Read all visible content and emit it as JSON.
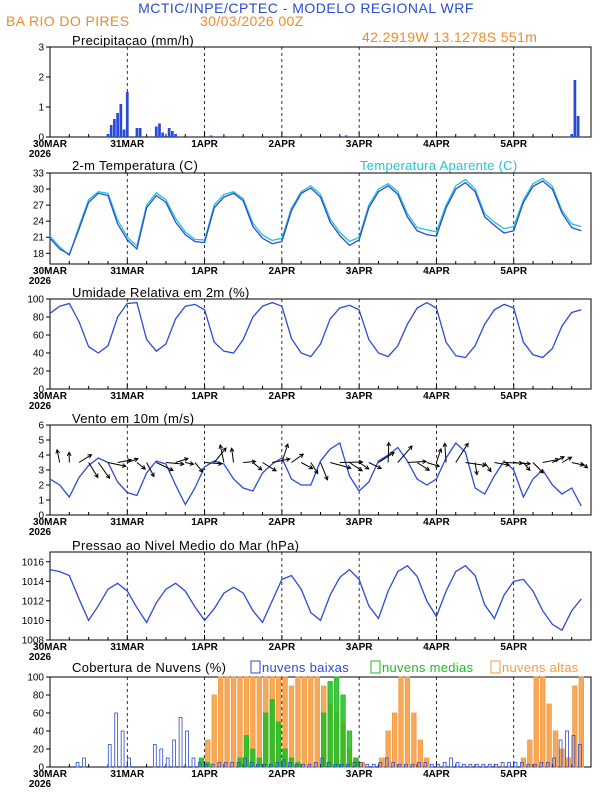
{
  "header": {
    "title": "MCTIC/INPE/CPTEC - MODELO REGIONAL WRF",
    "location": "BA RIO DO PIRES",
    "run": "30/03/2026 00Z",
    "coords": "42.2919W 13.1278S 551m"
  },
  "x_axis": {
    "first_label": "30MAR",
    "year": "2026",
    "labels": [
      "31MAR",
      "1APR",
      "2APR",
      "3APR",
      "4APR",
      "5APR"
    ]
  },
  "colors": {
    "blue": "#2a4bd8",
    "cyan": "#22c4d4",
    "orange": "#f59a3c",
    "green": "#22bb22",
    "title_blue": "#2a4bd8"
  },
  "chart_data": [
    {
      "id": "precip",
      "type": "bar",
      "title": "Precipitacao (mm/h)",
      "ylim": [
        0,
        3
      ],
      "yticks": [
        "0",
        "1",
        "2",
        "3"
      ],
      "x_hours": [
        18,
        19,
        20,
        21,
        22,
        23,
        24,
        27,
        28,
        33,
        34,
        35,
        37,
        38,
        39,
        50,
        92,
        162,
        163,
        164
      ],
      "values": [
        0.1,
        0.4,
        0.6,
        0.8,
        1.1,
        0.25,
        1.5,
        0.3,
        0.3,
        0.35,
        0.45,
        0.15,
        0.3,
        0.2,
        0.1,
        0.05,
        0.05,
        0.1,
        1.9,
        0.7
      ]
    },
    {
      "id": "temp",
      "type": "line",
      "title": "2-m Temperatura (C)",
      "legend": "Temperatura Aparente (C)",
      "ylim": [
        16,
        33
      ],
      "yticks": [
        "18",
        "21",
        "24",
        "27",
        "30",
        "33"
      ],
      "series": [
        {
          "name": "2-m Temperatura (C)",
          "x": [
            0,
            3,
            6,
            9,
            12,
            15,
            18,
            21,
            24,
            27,
            30,
            33,
            36,
            39,
            42,
            45,
            48,
            51,
            54,
            57,
            60,
            63,
            66,
            69,
            72,
            75,
            78,
            81,
            84,
            87,
            90,
            93,
            96,
            99,
            102,
            105,
            108,
            111,
            114,
            117,
            120,
            123,
            126,
            129,
            132,
            135,
            138,
            141,
            144,
            147,
            150,
            153,
            156,
            159,
            162,
            165
          ],
          "values": [
            20.8,
            18.8,
            17.8,
            22.5,
            27.5,
            29.2,
            28.8,
            23.5,
            20.5,
            18.8,
            26.5,
            28.8,
            27.5,
            23.8,
            21.5,
            20.2,
            20.0,
            26.5,
            28.5,
            29.2,
            27.8,
            23.0,
            20.8,
            19.8,
            20.2,
            26.0,
            29.2,
            30.2,
            28.5,
            23.8,
            21.3,
            19.5,
            20.5,
            26.5,
            29.5,
            30.6,
            29.0,
            24.8,
            22.2,
            21.5,
            21.2,
            26.5,
            30.0,
            31.2,
            29.5,
            24.8,
            23.2,
            21.8,
            22.2,
            27.5,
            30.5,
            31.5,
            30.0,
            25.5,
            22.8,
            22.2
          ]
        },
        {
          "name": "Temperatura Aparente (C)",
          "x": [
            0,
            3,
            6,
            9,
            12,
            15,
            18,
            21,
            24,
            27,
            30,
            33,
            36,
            39,
            42,
            45,
            48,
            51,
            54,
            57,
            60,
            63,
            66,
            69,
            72,
            75,
            78,
            81,
            84,
            87,
            90,
            93,
            96,
            99,
            102,
            105,
            108,
            111,
            114,
            117,
            120,
            123,
            126,
            129,
            132,
            135,
            138,
            141,
            144,
            147,
            150,
            153,
            156,
            159,
            162,
            165
          ],
          "values": [
            21.2,
            19.2,
            17.6,
            23.0,
            28.0,
            29.5,
            29.2,
            24.2,
            21.0,
            19.4,
            27.0,
            29.3,
            28.0,
            24.5,
            22.0,
            20.6,
            20.5,
            27.0,
            29.0,
            29.5,
            28.2,
            23.6,
            21.4,
            20.4,
            20.8,
            26.5,
            29.5,
            30.6,
            29.0,
            24.4,
            21.9,
            20.2,
            21.0,
            27.0,
            30.0,
            31.0,
            29.5,
            25.4,
            22.8,
            22.4,
            22.0,
            27.0,
            30.6,
            31.8,
            30.0,
            25.4,
            23.8,
            22.6,
            23.0,
            28.0,
            31.0,
            32.0,
            30.5,
            26.0,
            23.5,
            23.0
          ]
        }
      ]
    },
    {
      "id": "rh",
      "type": "line",
      "title": "Umidade Relativa em 2m (%)",
      "ylim": [
        0,
        100
      ],
      "yticks": [
        "0",
        "20",
        "40",
        "60",
        "80",
        "100"
      ],
      "series": [
        {
          "name": "UR",
          "x": [
            0,
            3,
            6,
            9,
            12,
            15,
            18,
            21,
            24,
            27,
            30,
            33,
            36,
            39,
            42,
            45,
            48,
            51,
            54,
            57,
            60,
            63,
            66,
            69,
            72,
            75,
            78,
            81,
            84,
            87,
            90,
            93,
            96,
            99,
            102,
            105,
            108,
            111,
            114,
            117,
            120,
            123,
            126,
            129,
            132,
            135,
            138,
            141,
            144,
            147,
            150,
            153,
            156,
            159,
            162,
            165
          ],
          "values": [
            84,
            92,
            95,
            75,
            47,
            40,
            48,
            80,
            95,
            96,
            55,
            42,
            50,
            78,
            92,
            94,
            88,
            52,
            42,
            40,
            55,
            80,
            92,
            96,
            92,
            56,
            40,
            36,
            50,
            78,
            90,
            93,
            88,
            55,
            40,
            36,
            48,
            72,
            90,
            96,
            90,
            52,
            37,
            35,
            48,
            72,
            88,
            94,
            90,
            52,
            38,
            35,
            45,
            70,
            85,
            88
          ]
        }
      ]
    },
    {
      "id": "wind",
      "type": "line",
      "title": "Vento em 10m (m/s)",
      "ylim": [
        0,
        6
      ],
      "yticks": [
        "0",
        "1",
        "2",
        "3",
        "4",
        "5",
        "6"
      ],
      "series": [
        {
          "name": "Vento 10m",
          "x": [
            0,
            3,
            6,
            9,
            12,
            15,
            18,
            21,
            24,
            27,
            30,
            33,
            36,
            39,
            42,
            45,
            48,
            51,
            54,
            57,
            60,
            63,
            66,
            69,
            72,
            75,
            78,
            81,
            84,
            87,
            90,
            93,
            96,
            99,
            102,
            105,
            108,
            111,
            114,
            117,
            120,
            123,
            126,
            129,
            132,
            135,
            138,
            141,
            144,
            147,
            150,
            153,
            156,
            159,
            162,
            165
          ],
          "values": [
            2.4,
            2.0,
            1.2,
            2.5,
            3.3,
            3.8,
            3.5,
            2.2,
            1.5,
            1.3,
            2.8,
            3.6,
            3.4,
            2.0,
            0.7,
            1.8,
            3.2,
            3.6,
            3.4,
            2.4,
            1.8,
            1.6,
            2.8,
            3.4,
            3.8,
            2.4,
            2.0,
            2.0,
            3.6,
            4.4,
            4.8,
            2.6,
            1.6,
            2.2,
            3.6,
            4.0,
            4.5,
            3.6,
            2.4,
            2.0,
            2.4,
            3.8,
            4.8,
            4.2,
            1.8,
            1.4,
            2.6,
            3.6,
            3.0,
            1.2,
            2.4,
            3.0,
            2.0,
            1.4,
            1.8,
            0.6
          ]
        }
      ],
      "arrows": "wind direction barbs drawn along y = 3.5"
    },
    {
      "id": "slp",
      "type": "line",
      "title": "Pressao ao Nivel Medio do Mar (hPa)",
      "ylim": [
        1008,
        1017
      ],
      "yticks": [
        "1008",
        "1010",
        "1012",
        "1014",
        "1016"
      ],
      "series": [
        {
          "name": "PNMM",
          "x": [
            0,
            3,
            6,
            9,
            12,
            15,
            18,
            21,
            24,
            27,
            30,
            33,
            36,
            39,
            42,
            45,
            48,
            51,
            54,
            57,
            60,
            63,
            66,
            69,
            72,
            75,
            78,
            81,
            84,
            87,
            90,
            93,
            96,
            99,
            102,
            105,
            108,
            111,
            114,
            117,
            120,
            123,
            126,
            129,
            132,
            135,
            138,
            141,
            144,
            147,
            150,
            153,
            156,
            159,
            162,
            165
          ],
          "values": [
            1015.2,
            1015.0,
            1014.6,
            1012.2,
            1010.0,
            1011.5,
            1013.2,
            1013.8,
            1013.0,
            1011.3,
            1009.8,
            1011.8,
            1013.2,
            1013.8,
            1013.0,
            1011.4,
            1010.0,
            1011.2,
            1012.8,
            1013.4,
            1012.8,
            1011.0,
            1009.8,
            1012.0,
            1014.2,
            1014.6,
            1013.2,
            1010.8,
            1010.0,
            1012.6,
            1014.4,
            1015.2,
            1014.2,
            1011.5,
            1010.2,
            1013.0,
            1015.0,
            1015.6,
            1014.5,
            1012.0,
            1010.4,
            1013.0,
            1015.0,
            1015.6,
            1014.6,
            1011.6,
            1010.2,
            1012.6,
            1014.0,
            1014.2,
            1013.0,
            1011.0,
            1009.6,
            1009.0,
            1011.0,
            1012.2
          ]
        }
      ]
    },
    {
      "id": "clouds",
      "type": "bar",
      "title": "Cobertura de Nuvens (%)",
      "ylim": [
        0,
        100
      ],
      "yticks": [
        "0",
        "20",
        "40",
        "60",
        "80",
        "100"
      ],
      "legend": [
        "nuvens baixas",
        "nuvens medias",
        "nuvens altas"
      ],
      "x_hours": [
        0,
        2,
        4,
        6,
        8,
        10,
        12,
        14,
        16,
        18,
        20,
        22,
        24,
        26,
        28,
        30,
        32,
        34,
        36,
        38,
        40,
        42,
        44,
        46,
        48,
        50,
        52,
        54,
        56,
        58,
        60,
        62,
        64,
        66,
        68,
        70,
        72,
        74,
        76,
        78,
        80,
        82,
        84,
        86,
        88,
        90,
        92,
        94,
        96,
        98,
        100,
        102,
        104,
        106,
        108,
        110,
        112,
        114,
        116,
        118,
        120,
        122,
        124,
        126,
        128,
        130,
        132,
        134,
        136,
        138,
        140,
        142,
        144,
        146,
        148,
        150,
        152,
        154,
        156,
        158,
        160,
        162,
        164
      ],
      "series": [
        {
          "name": "nuvens baixas",
          "values": [
            0,
            0,
            0,
            0,
            5,
            10,
            0,
            0,
            0,
            25,
            60,
            40,
            10,
            0,
            0,
            0,
            25,
            20,
            10,
            30,
            55,
            40,
            10,
            5,
            3,
            3,
            5,
            5,
            5,
            5,
            10,
            5,
            3,
            3,
            3,
            5,
            8,
            5,
            3,
            3,
            3,
            5,
            10,
            5,
            3,
            3,
            3,
            5,
            5,
            3,
            3,
            5,
            10,
            5,
            3,
            3,
            3,
            5,
            5,
            3,
            3,
            5,
            10,
            5,
            3,
            3,
            3,
            3,
            3,
            3,
            5,
            5,
            5,
            5,
            3,
            3,
            5,
            5,
            10,
            30,
            40,
            35,
            25
          ]
        },
        {
          "name": "nuvens medias",
          "values": [
            0,
            0,
            0,
            0,
            0,
            0,
            0,
            0,
            0,
            0,
            0,
            0,
            0,
            0,
            0,
            0,
            0,
            0,
            0,
            0,
            0,
            0,
            0,
            10,
            5,
            0,
            0,
            0,
            0,
            10,
            35,
            20,
            10,
            60,
            75,
            50,
            20,
            10,
            5,
            0,
            0,
            0,
            60,
            95,
            100,
            80,
            40,
            10,
            0,
            0,
            0,
            0,
            0,
            0,
            0,
            0,
            0,
            0,
            0,
            0,
            0,
            0,
            0,
            0,
            0,
            0,
            0,
            0,
            0,
            0,
            0,
            0,
            0,
            0,
            0,
            0,
            0,
            0,
            0,
            0,
            0,
            0,
            0
          ]
        },
        {
          "name": "nuvens altas",
          "values": [
            0,
            0,
            0,
            0,
            0,
            0,
            0,
            0,
            0,
            0,
            0,
            0,
            0,
            0,
            0,
            0,
            0,
            0,
            0,
            0,
            0,
            0,
            0,
            0,
            30,
            80,
            100,
            100,
            100,
            100,
            100,
            100,
            100,
            100,
            100,
            100,
            100,
            90,
            100,
            100,
            100,
            100,
            90,
            70,
            60,
            50,
            20,
            10,
            5,
            0,
            0,
            10,
            40,
            60,
            100,
            100,
            60,
            30,
            10,
            0,
            0,
            0,
            0,
            0,
            0,
            0,
            0,
            0,
            0,
            0,
            0,
            0,
            0,
            10,
            30,
            100,
            100,
            70,
            40,
            20,
            10,
            90,
            100
          ]
        }
      ]
    }
  ]
}
